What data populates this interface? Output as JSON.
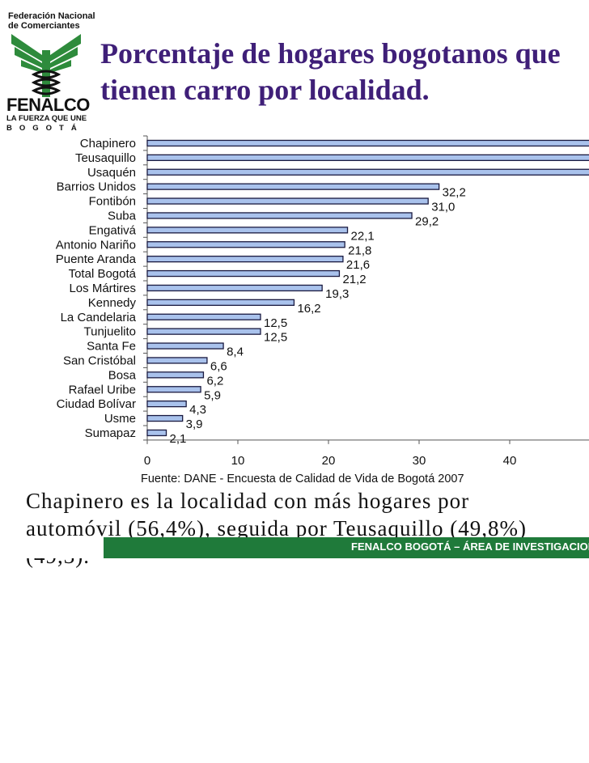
{
  "logo": {
    "line1": "Federación Nacional",
    "line2": "de Comerciantes",
    "name": "FENALCO",
    "tagline1": "LA FUERZA QUE UNE",
    "tagline2": "BOGOTÁ",
    "colors": {
      "green": "#2e8b3c",
      "dark": "#111111"
    }
  },
  "title": {
    "line1": "Porcentaje de hogares bogotanos que",
    "line2": "tienen carro por localidad."
  },
  "chart_data": {
    "type": "bar",
    "orientation": "horizontal",
    "categories": [
      "Chapinero",
      "Teusaquillo",
      "Usaquén",
      "Barrios Unidos",
      "Fontibón",
      "Suba",
      "Engativá",
      "Antonio Nariño",
      "Puente Aranda",
      "Total Bogotá",
      "Los Mártires",
      "Kennedy",
      "La Candelaria",
      "Tunjuelito",
      "Santa Fe",
      "San Cristóbal",
      "Bosa",
      "Rafael Uribe",
      "Ciudad Bolívar",
      "Usme",
      "Sumapaz"
    ],
    "values": [
      56.4,
      49.8,
      49.3,
      32.2,
      31.0,
      29.2,
      22.1,
      21.8,
      21.6,
      21.2,
      19.3,
      16.2,
      12.5,
      12.5,
      8.4,
      6.6,
      6.2,
      5.9,
      4.3,
      3.9,
      2.1
    ],
    "data_labels": [
      "",
      "",
      "",
      "32,2",
      "31,0",
      "29,2",
      "22,1",
      "21,8",
      "21,6",
      "21,2",
      "19,3",
      "16,2",
      "12,5",
      "12,5",
      "8,4",
      "6,6",
      "6,2",
      "5,9",
      "4,3",
      "3,9",
      "2,1"
    ],
    "xticks": [
      0,
      10,
      20,
      30,
      40
    ],
    "xlim": [
      0,
      60
    ],
    "source": "Fuente: DANE - Encuesta de Calidad de Vida de Bogotá 2007",
    "colors": {
      "bar": "#a9c2ec",
      "bar_edge": "#1a1a40"
    }
  },
  "body_text": {
    "line1": "Chapinero es la localidad con más hogares por",
    "line2": "automóvil (56,4%), seguida por Teusaquillo (49,8%)",
    "line3": "(49,3)."
  },
  "footer": {
    "text": "FENALCO BOGOTÁ – ÁREA DE INVESTIGACIONES",
    "bar_color": "#1f7a3a"
  }
}
